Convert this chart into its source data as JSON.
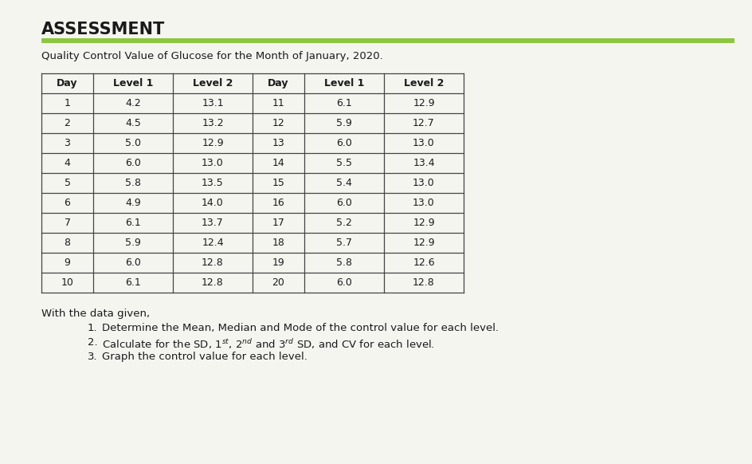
{
  "title": "ASSESSMENT",
  "subtitle": "Quality Control Value of Glucose for the Month of January, 2020.",
  "green_bar_color": "#8dc63f",
  "background_color": "#f5f5f0",
  "table_headers": [
    "Day",
    "Level 1",
    "Level 2",
    "Day",
    "Level 1",
    "Level 2"
  ],
  "left_data": [
    [
      1,
      "4.2",
      "13.1"
    ],
    [
      2,
      "4.5",
      "13.2"
    ],
    [
      3,
      "5.0",
      "12.9"
    ],
    [
      4,
      "6.0",
      "13.0"
    ],
    [
      5,
      "5.8",
      "13.5"
    ],
    [
      6,
      "4.9",
      "14.0"
    ],
    [
      7,
      "6.1",
      "13.7"
    ],
    [
      8,
      "5.9",
      "12.4"
    ],
    [
      9,
      "6.0",
      "12.8"
    ],
    [
      10,
      "6.1",
      "12.8"
    ]
  ],
  "right_data": [
    [
      11,
      "6.1",
      "12.9"
    ],
    [
      12,
      "5.9",
      "12.7"
    ],
    [
      13,
      "6.0",
      "13.0"
    ],
    [
      14,
      "5.5",
      "13.4"
    ],
    [
      15,
      "5.4",
      "13.0"
    ],
    [
      16,
      "6.0",
      "13.0"
    ],
    [
      17,
      "5.2",
      "12.9"
    ],
    [
      18,
      "5.7",
      "12.9"
    ],
    [
      19,
      "5.8",
      "12.6"
    ],
    [
      20,
      "6.0",
      "12.8"
    ]
  ],
  "footer_intro": "With the data given,",
  "footer_items": [
    "Determine the Mean, Median and Mode of the control value for each level.",
    "Graph the control value for each level."
  ],
  "footer_item2": "Calculate for the SD, 1$^{st}$, 2$^{nd}$ and 3$^{rd}$ SD, and CV for each level.",
  "footer_numbers": [
    "1.",
    "2.",
    "3."
  ],
  "title_fontsize": 15,
  "subtitle_fontsize": 9.5,
  "table_fontsize": 9,
  "footer_fontsize": 9.5,
  "title_font_weight": "bold",
  "table_border_color": "#444444",
  "text_color": "#1a1a1a"
}
